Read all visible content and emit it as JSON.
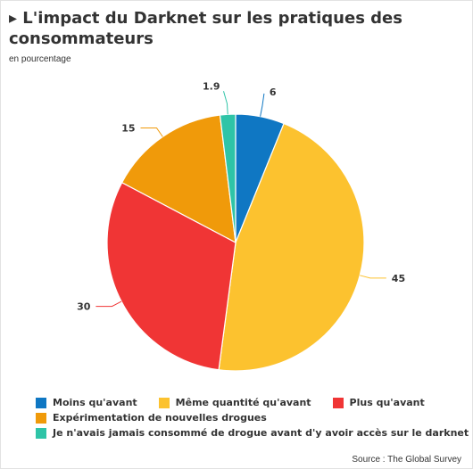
{
  "title": "▸ L'impact du Darknet sur les pratiques des consommateurs",
  "subtitle": "en pourcentage",
  "source": "Source : The Global Survey",
  "chart_data": {
    "type": "pie",
    "title": "L'impact du Darknet sur les pratiques des consommateurs",
    "subtitle": "en pourcentage",
    "slices": [
      {
        "label": "Moins qu'avant",
        "value": 6,
        "value_label": "6",
        "color": "#0f77c3"
      },
      {
        "label": "Même quantité qu'avant",
        "value": 45,
        "value_label": "45",
        "color": "#fcc22f"
      },
      {
        "label": "Plus qu'avant",
        "value": 30,
        "value_label": "30",
        "color": "#f03535"
      },
      {
        "label": "Expérimentation de nouvelles drogues",
        "value": 15,
        "value_label": "15",
        "color": "#f09a0a"
      },
      {
        "label": "Je n'avais jamais consommé de drogue avant d'y avoir accès sur le darknet",
        "value": 1.9,
        "value_label": "1.9",
        "color": "#2ec4a7"
      }
    ],
    "start": "top, clockwise",
    "legend_position": "bottom"
  }
}
